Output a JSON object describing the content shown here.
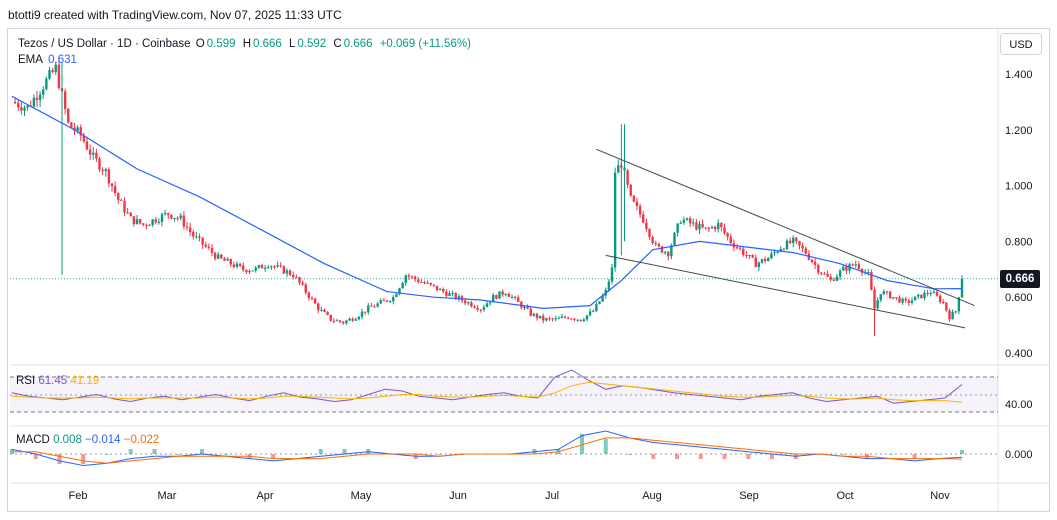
{
  "header": {
    "attribution": "btotti9 created with TradingView.com, Nov 07, 2025 11:33 UTC"
  },
  "legend": {
    "symbol": "Tezos / US Dollar · 1D · Coinbase",
    "o_label": "O",
    "o_value": "0.599",
    "h_label": "H",
    "h_value": "0.666",
    "l_label": "L",
    "l_value": "0.592",
    "c_label": "C",
    "c_value": "0.666",
    "change": "+0.069 (+11.56%)",
    "ema_label": "EMA",
    "ema_value": "0.631"
  },
  "currency_button": "USD",
  "last_price_badge": "0.666",
  "rsi_legend": {
    "label": "RSI",
    "rsi_value": "61.45",
    "ma_value": "41.19"
  },
  "macd_legend": {
    "label": "MACD",
    "hist": "0.008",
    "macd": "−0.014",
    "signal": "−0.022"
  },
  "colors": {
    "up": "#089981",
    "down": "#f23645",
    "ema": "#2962ff",
    "trendline": "#434651",
    "rsi": "#7e57c2",
    "rsi_ma": "#f7b500",
    "macd": "#2962ff",
    "signal": "#ff6d00"
  },
  "chart_data": {
    "type": "candlestick",
    "instrument": "Tezos / US Dollar",
    "timeframe": "1D",
    "exchange": "Coinbase",
    "y_axis_ticks": [
      "1.400",
      "1.200",
      "1.000",
      "0.800",
      "0.600",
      "0.400"
    ],
    "rsi_ticks": [
      "40.00"
    ],
    "macd_ticks": [
      "0.000"
    ],
    "x_axis_ticks": [
      "Feb",
      "Mar",
      "Apr",
      "May",
      "Jun",
      "Jul",
      "Aug",
      "Sep",
      "Oct",
      "Nov"
    ],
    "ylim": [
      0.38,
      1.48
    ],
    "last_close": 0.666,
    "ema_last": 0.631,
    "price_path": [
      [
        0,
        1.3
      ],
      [
        5,
        1.28
      ],
      [
        10,
        1.36
      ],
      [
        14,
        1.42
      ],
      [
        18,
        1.22
      ],
      [
        22,
        1.18
      ],
      [
        26,
        1.1
      ],
      [
        30,
        1.05
      ],
      [
        34,
        0.95
      ],
      [
        38,
        0.88
      ],
      [
        42,
        0.86
      ],
      [
        46,
        0.88
      ],
      [
        50,
        0.9
      ],
      [
        54,
        0.88
      ],
      [
        58,
        0.82
      ],
      [
        62,
        0.78
      ],
      [
        66,
        0.74
      ],
      [
        70,
        0.72
      ],
      [
        74,
        0.7
      ],
      [
        78,
        0.7
      ],
      [
        82,
        0.72
      ],
      [
        86,
        0.7
      ],
      [
        90,
        0.68
      ],
      [
        94,
        0.62
      ],
      [
        98,
        0.56
      ],
      [
        102,
        0.52
      ],
      [
        106,
        0.51
      ],
      [
        110,
        0.53
      ],
      [
        114,
        0.56
      ],
      [
        118,
        0.58
      ],
      [
        122,
        0.6
      ],
      [
        126,
        0.68
      ],
      [
        130,
        0.66
      ],
      [
        134,
        0.64
      ],
      [
        138,
        0.62
      ],
      [
        142,
        0.6
      ],
      [
        146,
        0.58
      ],
      [
        150,
        0.56
      ],
      [
        154,
        0.6
      ],
      [
        158,
        0.62
      ],
      [
        162,
        0.58
      ],
      [
        166,
        0.54
      ],
      [
        170,
        0.52
      ],
      [
        174,
        0.52
      ],
      [
        178,
        0.53
      ],
      [
        182,
        0.52
      ],
      [
        186,
        0.55
      ],
      [
        190,
        0.62
      ],
      [
        192,
        0.7
      ],
      [
        193,
        1.05
      ],
      [
        195,
        1.08
      ],
      [
        198,
        0.95
      ],
      [
        202,
        0.88
      ],
      [
        206,
        0.78
      ],
      [
        210,
        0.76
      ],
      [
        214,
        0.88
      ],
      [
        218,
        0.86
      ],
      [
        222,
        0.84
      ],
      [
        226,
        0.86
      ],
      [
        230,
        0.8
      ],
      [
        234,
        0.76
      ],
      [
        238,
        0.72
      ],
      [
        242,
        0.74
      ],
      [
        246,
        0.78
      ],
      [
        250,
        0.8
      ],
      [
        254,
        0.76
      ],
      [
        258,
        0.7
      ],
      [
        262,
        0.66
      ],
      [
        266,
        0.7
      ],
      [
        270,
        0.72
      ],
      [
        274,
        0.68
      ],
      [
        276,
        0.56
      ],
      [
        278,
        0.62
      ],
      [
        282,
        0.6
      ],
      [
        286,
        0.58
      ],
      [
        290,
        0.6
      ],
      [
        294,
        0.62
      ],
      [
        298,
        0.58
      ],
      [
        300,
        0.53
      ],
      [
        302,
        0.55
      ],
      [
        304,
        0.666
      ]
    ],
    "ema_path": [
      [
        0,
        1.32
      ],
      [
        20,
        1.2
      ],
      [
        40,
        1.06
      ],
      [
        60,
        0.96
      ],
      [
        80,
        0.84
      ],
      [
        100,
        0.72
      ],
      [
        120,
        0.62
      ],
      [
        135,
        0.6
      ],
      [
        150,
        0.59
      ],
      [
        170,
        0.56
      ],
      [
        185,
        0.57
      ],
      [
        195,
        0.66
      ],
      [
        205,
        0.77
      ],
      [
        220,
        0.8
      ],
      [
        235,
        0.78
      ],
      [
        250,
        0.76
      ],
      [
        265,
        0.72
      ],
      [
        280,
        0.66
      ],
      [
        295,
        0.63
      ],
      [
        304,
        0.631
      ]
    ],
    "trendlines": [
      {
        "from": [
          187,
          1.13
        ],
        "to": [
          308,
          0.57
        ]
      },
      {
        "from": [
          190,
          0.75
        ],
        "to": [
          305,
          0.49
        ]
      }
    ],
    "rsi_series": [
      52,
      48,
      46,
      44,
      47,
      50,
      45,
      42,
      46,
      48,
      44,
      47,
      50,
      46,
      43,
      48,
      52,
      47,
      45,
      42,
      44,
      50,
      56,
      54,
      48,
      46,
      44,
      47,
      50,
      52,
      48,
      46,
      70,
      78,
      66,
      56,
      60,
      58,
      55,
      52,
      50,
      48,
      46,
      44,
      48,
      50,
      52,
      46,
      42,
      44,
      46,
      48,
      40,
      42,
      44,
      46,
      61.45
    ],
    "rsi_ma_series": [
      48,
      47,
      46,
      46,
      46,
      47,
      46,
      45,
      46,
      46,
      46,
      46,
      47,
      46,
      45,
      46,
      48,
      48,
      47,
      46,
      45,
      46,
      48,
      50,
      50,
      48,
      47,
      47,
      48,
      49,
      48,
      47,
      52,
      60,
      64,
      62,
      60,
      58,
      56,
      54,
      52,
      50,
      48,
      47,
      47,
      48,
      49,
      48,
      46,
      45,
      45,
      46,
      44,
      43,
      43,
      43,
      41.19
    ],
    "macd_series": [
      0.02,
      0.0,
      -0.03,
      -0.05,
      -0.04,
      -0.02,
      -0.01,
      -0.01,
      0.0,
      -0.01,
      -0.02,
      -0.03,
      -0.02,
      -0.01,
      0.0,
      0.01,
      0.0,
      -0.01,
      -0.01,
      0.0,
      0.0,
      0.0,
      0.01,
      0.02,
      0.08,
      0.1,
      0.07,
      0.05,
      0.04,
      0.03,
      0.02,
      0.01,
      0.0,
      -0.01,
      0.0,
      -0.01,
      -0.02,
      -0.02,
      -0.03,
      -0.02,
      -0.014
    ],
    "signal_series": [
      0.01,
      0.01,
      -0.01,
      -0.03,
      -0.04,
      -0.03,
      -0.02,
      -0.01,
      -0.01,
      -0.01,
      -0.01,
      -0.02,
      -0.02,
      -0.02,
      -0.01,
      0.0,
      0.0,
      0.0,
      -0.01,
      0.0,
      0.0,
      0.0,
      0.0,
      0.01,
      0.04,
      0.07,
      0.07,
      0.06,
      0.05,
      0.04,
      0.03,
      0.02,
      0.01,
      0.0,
      0.0,
      -0.01,
      -0.01,
      -0.02,
      -0.02,
      -0.02,
      -0.022
    ]
  }
}
